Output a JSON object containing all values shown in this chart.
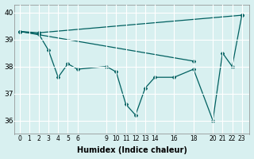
{
  "xlabel": "Humidex (Indice chaleur)",
  "background_color": "#d8f0f0",
  "line_color": "#006060",
  "grid_color": "#ffffff",
  "lines": [
    {
      "x": [
        0,
        2,
        23
      ],
      "y": [
        39.3,
        39.25,
        39.9
      ]
    },
    {
      "x": [
        0,
        18
      ],
      "y": [
        39.3,
        38.2
      ]
    },
    {
      "x": [
        0,
        2,
        3,
        4,
        5,
        6,
        9,
        10,
        11,
        12,
        13,
        14,
        16,
        18,
        20,
        21,
        22,
        23
      ],
      "y": [
        39.3,
        39.2,
        38.6,
        37.6,
        38.1,
        37.9,
        38.0,
        37.8,
        36.6,
        36.2,
        37.2,
        37.6,
        37.6,
        37.9,
        36.0,
        38.5,
        38.0,
        39.9
      ]
    }
  ],
  "xlim": [
    -0.5,
    23.8
  ],
  "ylim": [
    35.5,
    40.3
  ],
  "yticks": [
    36,
    37,
    38,
    39,
    40
  ],
  "xticks": [
    0,
    1,
    2,
    3,
    4,
    5,
    6,
    9,
    10,
    11,
    12,
    13,
    14,
    16,
    18,
    20,
    21,
    22,
    23
  ]
}
